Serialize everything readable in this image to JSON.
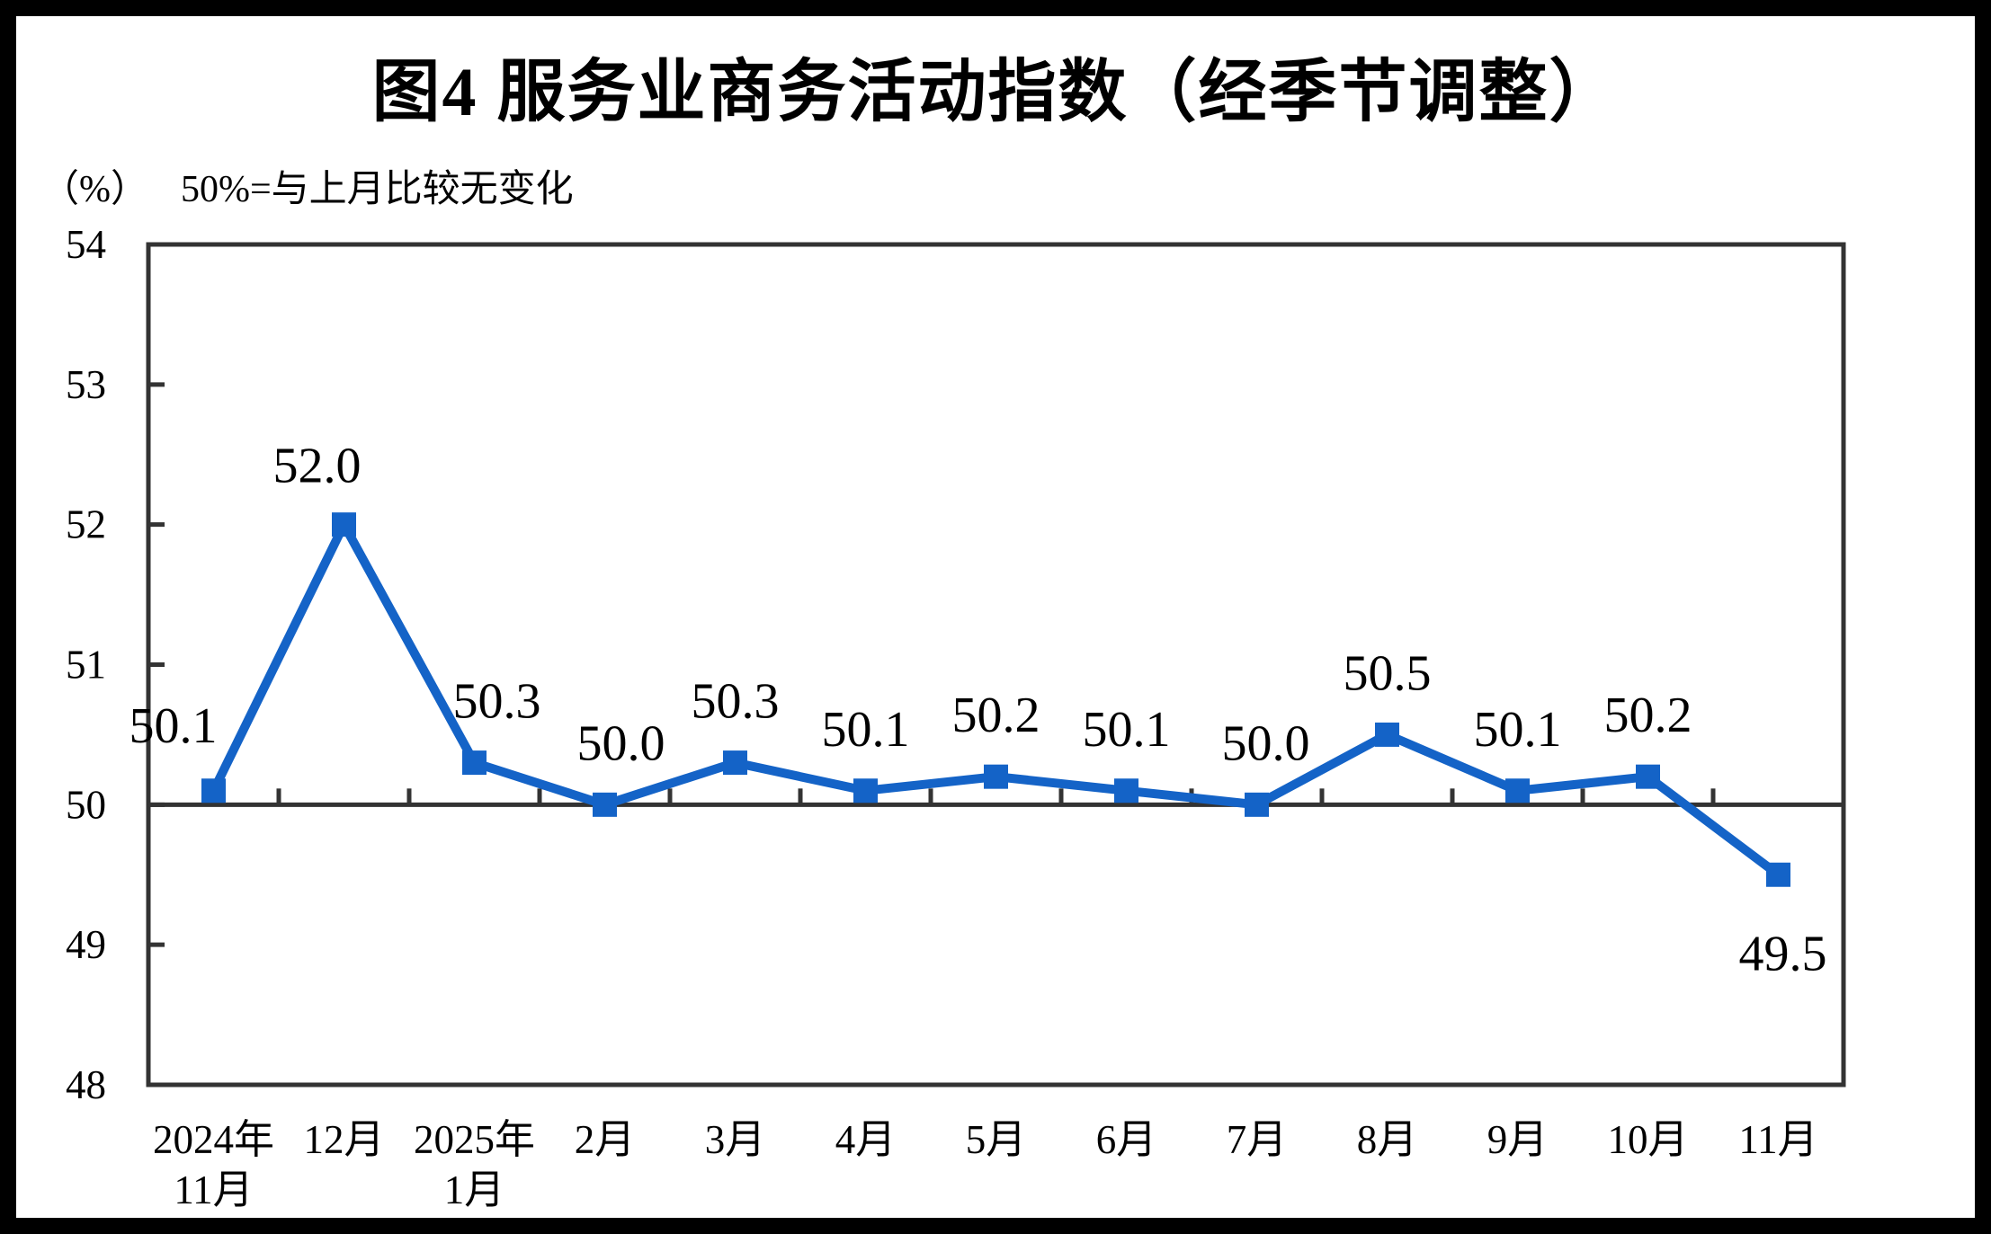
{
  "title": "图4  服务业商务活动指数（经季节调整）",
  "unit_label": "（%）",
  "subtitle": "50%=与上月比较无变化",
  "colors": {
    "line": "#1463c7",
    "axis": "#333333",
    "text": "#000000",
    "page_border": "#000000",
    "background": "#ffffff"
  },
  "chart_data": {
    "type": "line",
    "title": "图4  服务业商务活动指数（经季节调整）",
    "subtitle": "50%=与上月比较无变化",
    "unit": "（%）",
    "categories": [
      "2024年\n11月",
      "12月",
      "2025年\n1月",
      "2月",
      "3月",
      "4月",
      "5月",
      "6月",
      "7月",
      "8月",
      "9月",
      "10月",
      "11月"
    ],
    "values": [
      50.1,
      52.0,
      50.3,
      50.0,
      50.3,
      50.1,
      50.2,
      50.1,
      50.0,
      50.5,
      50.1,
      50.2,
      49.5
    ],
    "point_labels": [
      "50.1",
      "52.0",
      "50.3",
      "50.0",
      "50.3",
      "50.1",
      "50.2",
      "50.1",
      "50.0",
      "50.5",
      "50.1",
      "50.2",
      "49.5"
    ],
    "ylim": [
      48,
      54
    ],
    "yticks": [
      48,
      49,
      50,
      51,
      52,
      53,
      54
    ],
    "reference_line": 50,
    "marker": "square",
    "grid": "off",
    "legend": "none",
    "label_offsets": {
      "dx": [
        -45,
        -30,
        25,
        18,
        0,
        0,
        0,
        0,
        10,
        0,
        0,
        0,
        5
      ],
      "dy": [
        -72,
        -65,
        -68,
        -68,
        -68,
        -68,
        -68,
        -68,
        -68,
        -68,
        -68,
        -68,
        88
      ]
    }
  }
}
